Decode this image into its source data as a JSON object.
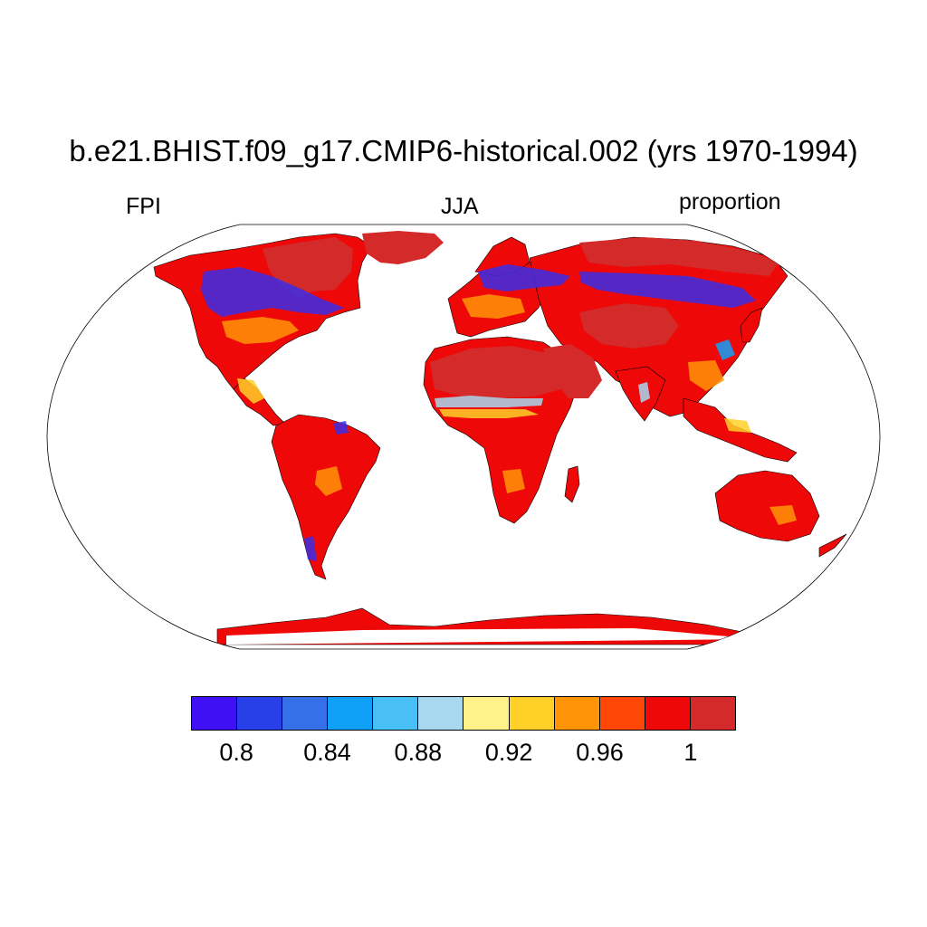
{
  "title": "b.e21.BHIST.f09_g17.CMIP6-historical.002 (yrs 1970-1994)",
  "left_label": "FPI",
  "center_label": "JJA",
  "right_label": "proportion",
  "colorbar": {
    "colors": [
      "#4010f5",
      "#2840e8",
      "#3570e8",
      "#10a0f8",
      "#48c0f5",
      "#a8d8f0",
      "#fff28a",
      "#ffd028",
      "#ff9408",
      "#ff4808",
      "#ee0808",
      "#d42a2a"
    ],
    "labels": [
      {
        "value": 0.8,
        "text": "0.8"
      },
      {
        "value": 0.84,
        "text": "0.84"
      },
      {
        "value": 0.88,
        "text": "0.88"
      },
      {
        "value": 0.92,
        "text": "0.92"
      },
      {
        "value": 0.96,
        "text": "0.96"
      },
      {
        "value": 1.0,
        "text": "1"
      }
    ],
    "min": 0.78,
    "max": 1.02
  },
  "map_colors": {
    "land_base": "#ee0808",
    "high": "#d42a2a",
    "low_blue": "#3a2ee8",
    "mid_blue": "#10a0f8",
    "light_blue": "#a8d8f0",
    "yellow": "#ffd028",
    "orange": "#ff9408",
    "coast": "#000000"
  }
}
